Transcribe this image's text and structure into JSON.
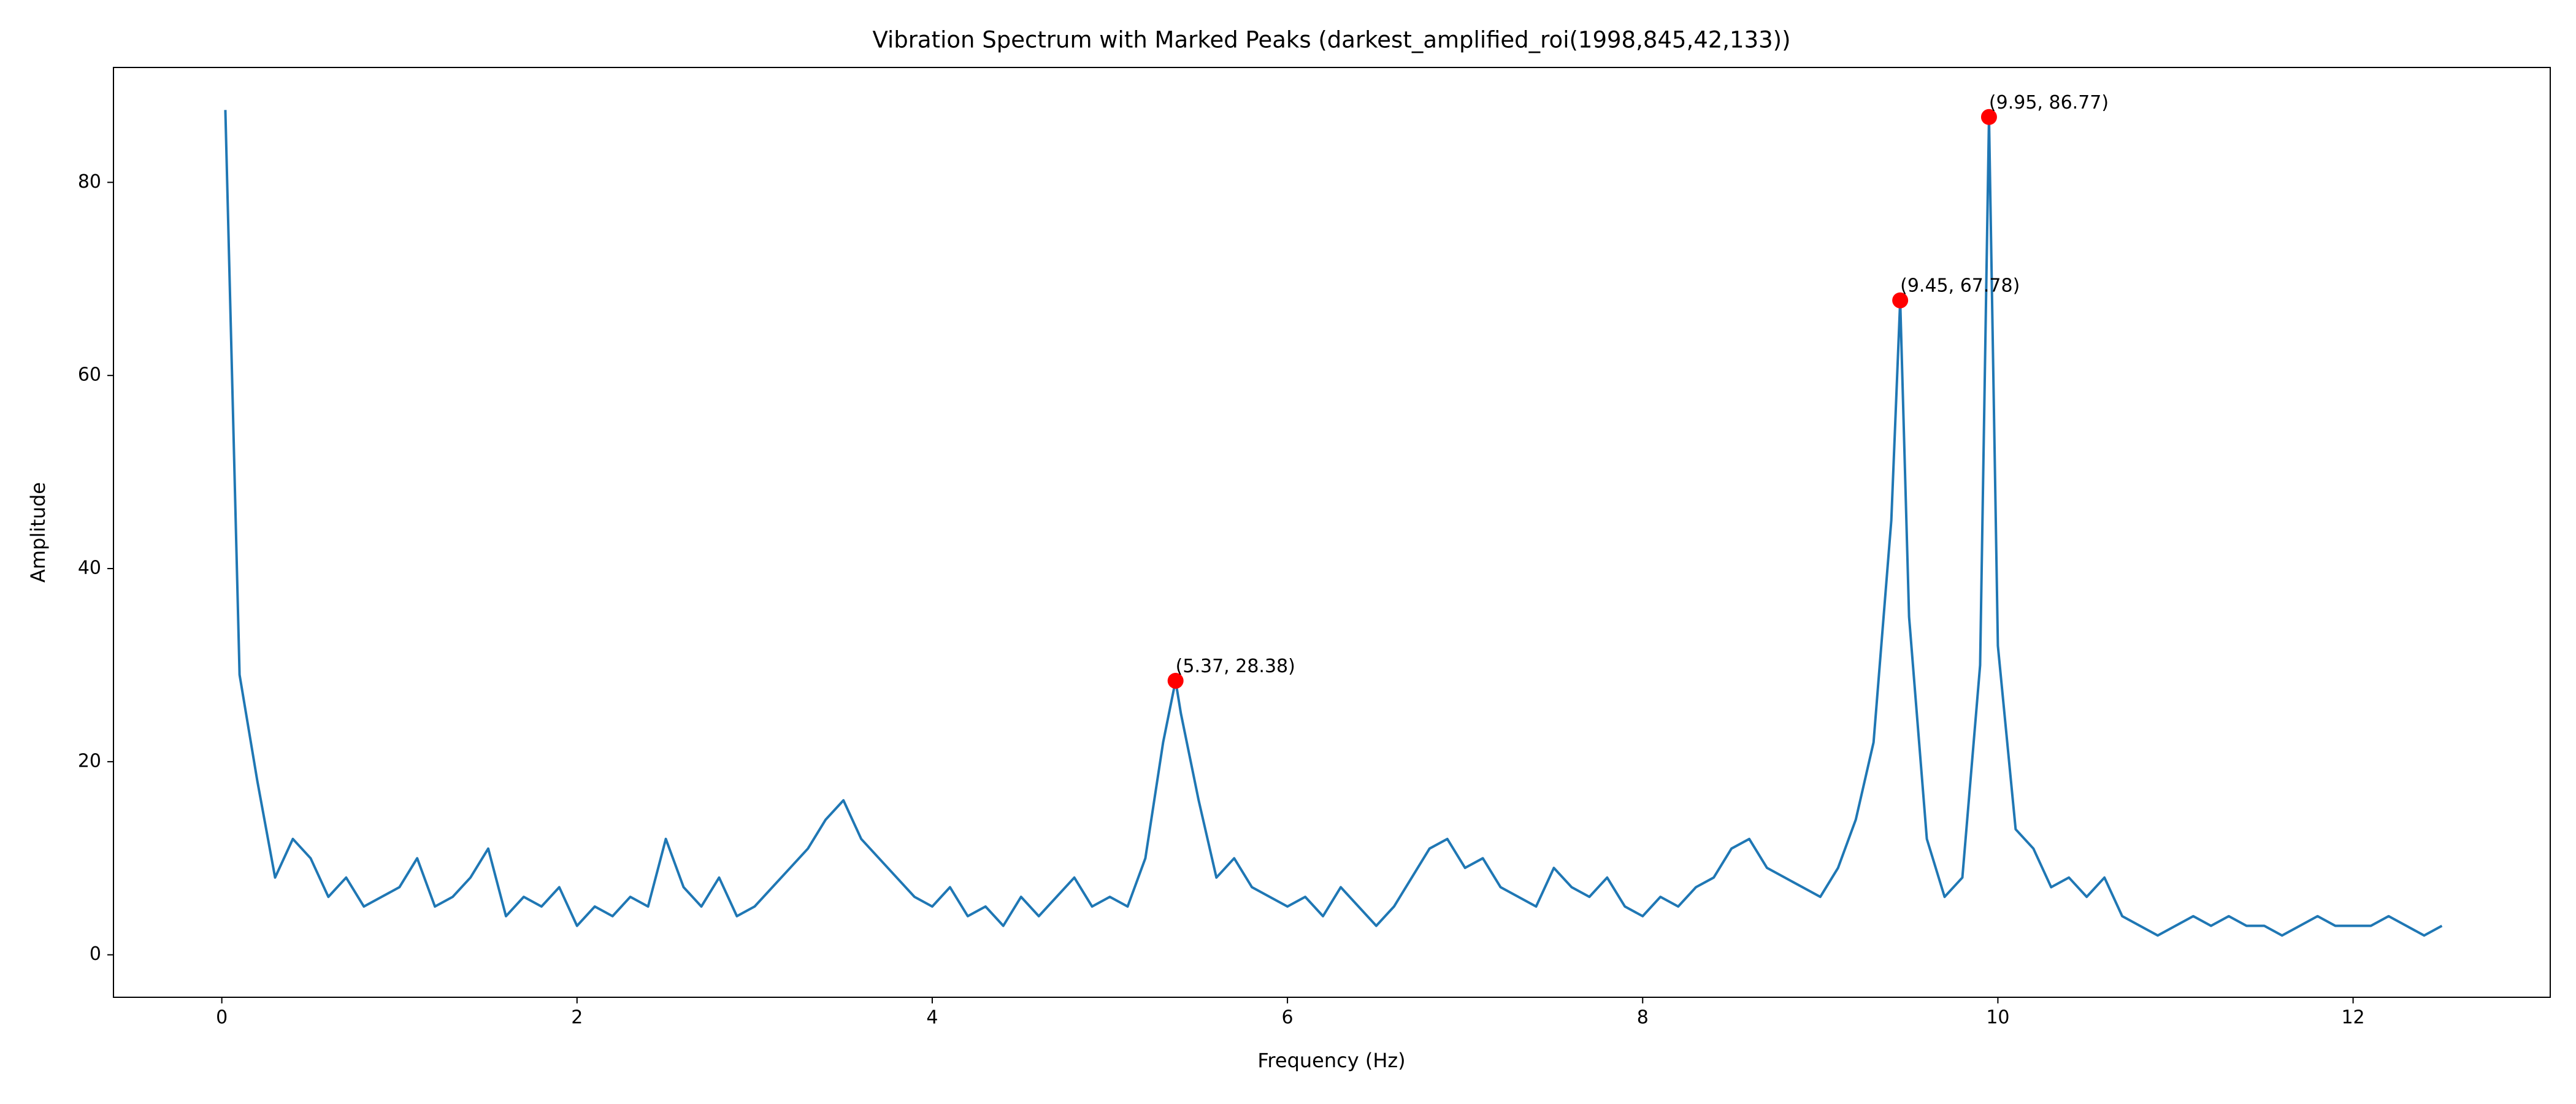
{
  "chart_data": {
    "type": "line",
    "title": "Vibration Spectrum with Marked Peaks (darkest_amplified_roi(1998,845,42,133))",
    "x_label": "Frequency (Hz)",
    "y_label": "Amplitude",
    "xlim": [
      -0.61,
      13.11
    ],
    "ylim": [
      -4.4,
      91.9
    ],
    "xticks": [
      0,
      2,
      4,
      6,
      8,
      10,
      12
    ],
    "yticks": [
      0,
      20,
      40,
      60,
      80
    ],
    "grid": false,
    "color": "#1f77b4",
    "x": [
      0.02,
      0.1,
      0.2,
      0.3,
      0.4,
      0.5,
      0.6,
      0.7,
      0.8,
      0.9,
      1.0,
      1.1,
      1.2,
      1.3,
      1.4,
      1.5,
      1.6,
      1.7,
      1.8,
      1.9,
      2.0,
      2.1,
      2.2,
      2.3,
      2.4,
      2.5,
      2.6,
      2.7,
      2.8,
      2.9,
      3.0,
      3.1,
      3.2,
      3.3,
      3.4,
      3.5,
      3.6,
      3.7,
      3.8,
      3.9,
      4.0,
      4.1,
      4.2,
      4.3,
      4.4,
      4.5,
      4.6,
      4.7,
      4.8,
      4.9,
      5.0,
      5.1,
      5.2,
      5.3,
      5.37,
      5.4,
      5.5,
      5.6,
      5.7,
      5.8,
      5.9,
      6.0,
      6.1,
      6.2,
      6.3,
      6.4,
      6.5,
      6.6,
      6.7,
      6.8,
      6.9,
      7.0,
      7.1,
      7.2,
      7.3,
      7.4,
      7.5,
      7.6,
      7.7,
      7.8,
      7.9,
      8.0,
      8.1,
      8.2,
      8.3,
      8.4,
      8.5,
      8.6,
      8.7,
      8.8,
      8.9,
      9.0,
      9.1,
      9.2,
      9.3,
      9.4,
      9.45,
      9.5,
      9.6,
      9.7,
      9.8,
      9.9,
      9.95,
      10.0,
      10.1,
      10.2,
      10.3,
      10.4,
      10.5,
      10.6,
      10.7,
      10.8,
      10.9,
      11.0,
      11.1,
      11.2,
      11.3,
      11.4,
      11.5,
      11.6,
      11.7,
      11.8,
      11.9,
      12.0,
      12.1,
      12.2,
      12.3,
      12.4,
      12.5
    ],
    "values": [
      87.5,
      29,
      18,
      8,
      12,
      10,
      6,
      8,
      5,
      6,
      7,
      10,
      5,
      6,
      8,
      11,
      4,
      6,
      5,
      7,
      3,
      5,
      4,
      6,
      5,
      12,
      7,
      5,
      8,
      4,
      5,
      7,
      9,
      11,
      14,
      16,
      12,
      10,
      8,
      6,
      5,
      7,
      4,
      5,
      3,
      6,
      4,
      6,
      8,
      5,
      6,
      5,
      10,
      22,
      28.38,
      25,
      16,
      8,
      10,
      7,
      6,
      5,
      6,
      4,
      7,
      5,
      3,
      5,
      8,
      11,
      12,
      9,
      10,
      7,
      6,
      5,
      9,
      7,
      6,
      8,
      5,
      4,
      6,
      5,
      7,
      8,
      11,
      12,
      9,
      8,
      7,
      6,
      9,
      14,
      22,
      45,
      67.78,
      35,
      12,
      6,
      8,
      30,
      86.77,
      32,
      13,
      11,
      7,
      8,
      6,
      8,
      4,
      3,
      2,
      3,
      4,
      3,
      4,
      3,
      3,
      2,
      3,
      4,
      3,
      3,
      3,
      4,
      3,
      2,
      3
    ],
    "peaks": {
      "color": "#ff0000",
      "x": [
        5.37,
        9.45,
        9.95
      ],
      "values": [
        28.38,
        67.78,
        86.77
      ],
      "labels": [
        "(5.37, 28.38)",
        "(9.45, 67.78)",
        "(9.95, 86.77)"
      ]
    }
  }
}
